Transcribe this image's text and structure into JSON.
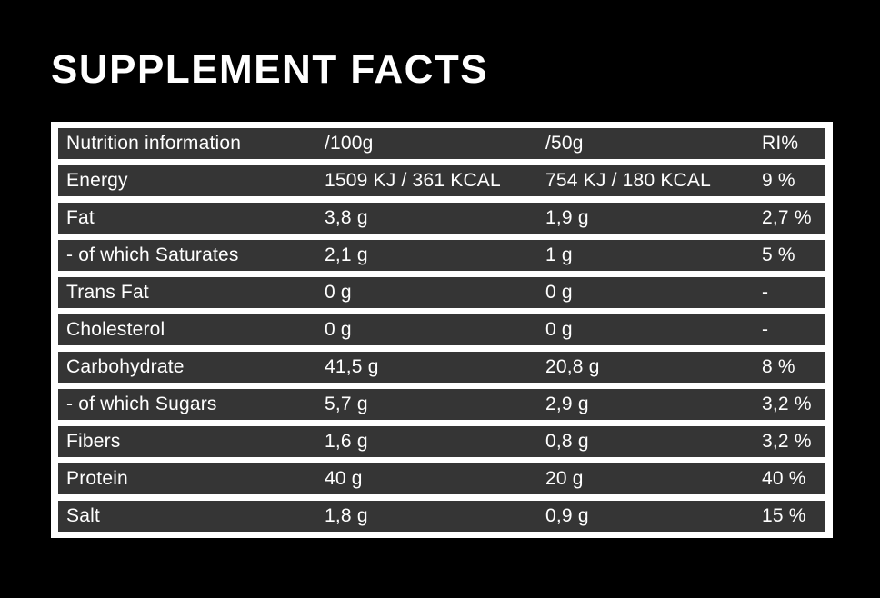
{
  "page": {
    "title": "SUPPLEMENT FACTS",
    "background_color": "#000000"
  },
  "table": {
    "frame_color": "#ffffff",
    "row_background_color": "#353535",
    "text_color": "#ffffff",
    "header": {
      "label": "Nutrition information",
      "per_100g": "/100g",
      "per_50g": "/50g",
      "ri": "RI%"
    },
    "rows": [
      {
        "label": "Energy",
        "per_100g": "1509 KJ / 361 KCAL",
        "per_50g": "754 KJ / 180 KCAL",
        "ri": "9 %"
      },
      {
        "label": "Fat",
        "per_100g": "3,8 g",
        "per_50g": "1,9 g",
        "ri": "2,7 %"
      },
      {
        "label": "- of which Saturates",
        "per_100g": "2,1 g",
        "per_50g": "1 g",
        "ri": "5 %"
      },
      {
        "label": "Trans Fat",
        "per_100g": "0 g",
        "per_50g": "0 g",
        "ri": "-"
      },
      {
        "label": "Cholesterol",
        "per_100g": "0 g",
        "per_50g": "0 g",
        "ri": "-"
      },
      {
        "label": "Carbohydrate",
        "per_100g": "41,5 g",
        "per_50g": "20,8 g",
        "ri": "8 %"
      },
      {
        "label": "- of which Sugars",
        "per_100g": "5,7 g",
        "per_50g": "2,9 g",
        "ri": "3,2 %"
      },
      {
        "label": "Fibers",
        "per_100g": "1,6 g",
        "per_50g": "0,8 g",
        "ri": "3,2 %"
      },
      {
        "label": "Protein",
        "per_100g": "40 g",
        "per_50g": "20 g",
        "ri": "40 %"
      },
      {
        "label": "Salt",
        "per_100g": "1,8 g",
        "per_50g": "0,9 g",
        "ri": "15 %"
      }
    ]
  }
}
